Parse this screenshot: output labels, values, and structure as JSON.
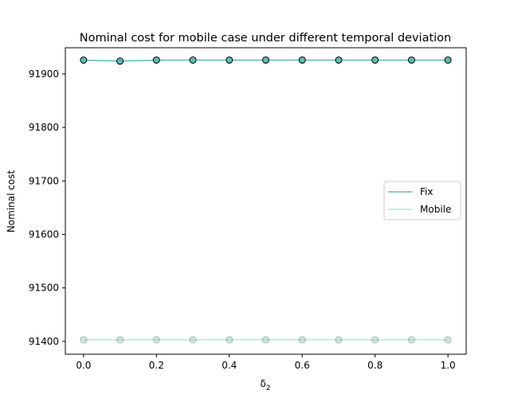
{
  "chart_data": {
    "type": "line",
    "title": "Nominal cost for mobile case under different temporal deviation",
    "xlabel": "δ",
    "xlabel_subscript": "2",
    "ylabel": "Nominal cost",
    "x": [
      0.0,
      0.1,
      0.2,
      0.3,
      0.4,
      0.5,
      0.6,
      0.7,
      0.8,
      0.9,
      1.0
    ],
    "xlim": [
      -0.05,
      1.05
    ],
    "ylim": [
      91376,
      91949
    ],
    "xticks": [
      0.0,
      0.2,
      0.4,
      0.6,
      0.8,
      1.0
    ],
    "xtick_labels": [
      "0.0",
      "0.2",
      "0.4",
      "0.6",
      "0.8",
      "1.0"
    ],
    "yticks": [
      91400,
      91500,
      91600,
      91700,
      91800,
      91900
    ],
    "ytick_labels": [
      "91400",
      "91500",
      "91600",
      "91700",
      "91800",
      "91900"
    ],
    "grid": false,
    "legend_placement": "center-right",
    "series": [
      {
        "name": "Fix",
        "values": [
          91926,
          91924,
          91926,
          91926,
          91926,
          91926,
          91926,
          91926,
          91926,
          91926,
          91926
        ],
        "line_color": "#5bbdb5",
        "marker_fill": "#5bbdb5",
        "marker_edge": "#000000",
        "marker_alpha": 1.0
      },
      {
        "name": "Mobile",
        "values": [
          91403,
          91403,
          91403,
          91403,
          91403,
          91403,
          91403,
          91403,
          91403,
          91403,
          91403
        ],
        "line_color": "#b9e6df",
        "marker_fill": "#5bbdb5",
        "marker_edge": "#000000",
        "marker_alpha": 0.3
      }
    ]
  }
}
